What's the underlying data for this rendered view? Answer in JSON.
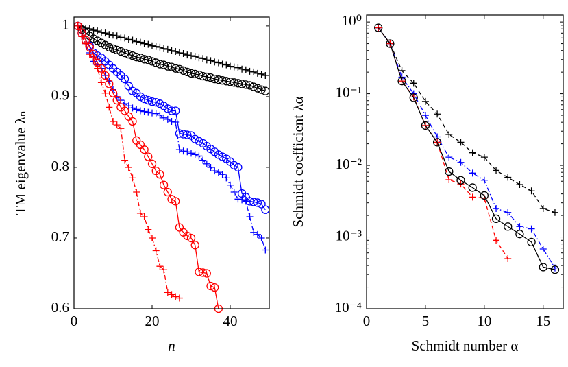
{
  "chart_data": [
    {
      "type": "line",
      "xlabel": "n",
      "ylabel": "TM eigenvalue λₙ",
      "xlim": [
        0,
        50
      ],
      "ylim": [
        0.6,
        1.0125
      ],
      "xticks": [
        0,
        20,
        40
      ],
      "yticks": [
        0.6,
        0.7,
        0.8,
        0.9,
        1
      ],
      "series": [
        {
          "color": "#000000",
          "marker": "plus",
          "dash": "solid",
          "x": [
            1,
            2,
            3,
            4,
            5,
            6,
            7,
            8,
            9,
            10,
            11,
            12,
            13,
            14,
            15,
            16,
            17,
            18,
            19,
            20,
            21,
            22,
            23,
            24,
            25,
            26,
            27,
            28,
            29,
            30,
            31,
            32,
            33,
            34,
            35,
            36,
            37,
            38,
            39,
            40,
            41,
            42,
            43,
            44,
            45,
            46,
            47,
            48,
            49
          ],
          "values": [
            1.0,
            0.999,
            0.997,
            0.996,
            0.994,
            0.993,
            0.991,
            0.99,
            0.988,
            0.987,
            0.986,
            0.984,
            0.983,
            0.981,
            0.98,
            0.978,
            0.977,
            0.975,
            0.974,
            0.972,
            0.971,
            0.97,
            0.968,
            0.967,
            0.965,
            0.964,
            0.962,
            0.961,
            0.959,
            0.958,
            0.957,
            0.955,
            0.954,
            0.952,
            0.951,
            0.949,
            0.948,
            0.946,
            0.945,
            0.943,
            0.942,
            0.941,
            0.939,
            0.938,
            0.936,
            0.935,
            0.933,
            0.932,
            0.93
          ]
        },
        {
          "color": "#000000",
          "marker": "circle",
          "dash": "solid",
          "x": [
            1,
            2,
            3,
            4,
            5,
            6,
            7,
            8,
            9,
            10,
            11,
            12,
            13,
            14,
            15,
            16,
            17,
            18,
            19,
            20,
            21,
            22,
            23,
            24,
            25,
            26,
            27,
            28,
            29,
            30,
            31,
            32,
            33,
            34,
            35,
            36,
            37,
            38,
            39,
            40,
            41,
            42,
            43,
            44,
            45,
            46,
            47,
            48,
            49
          ],
          "values": [
            1.0,
            0.995,
            0.99,
            0.986,
            0.982,
            0.979,
            0.976,
            0.973,
            0.97,
            0.968,
            0.966,
            0.964,
            0.962,
            0.96,
            0.958,
            0.956,
            0.955,
            0.953,
            0.952,
            0.95,
            0.948,
            0.946,
            0.945,
            0.943,
            0.942,
            0.94,
            0.939,
            0.937,
            0.935,
            0.933,
            0.932,
            0.931,
            0.929,
            0.928,
            0.927,
            0.925,
            0.924,
            0.923,
            0.922,
            0.921,
            0.92,
            0.919,
            0.918,
            0.917,
            0.916,
            0.914,
            0.912,
            0.91,
            0.908
          ]
        },
        {
          "color": "#0000ff",
          "marker": "circle",
          "dash": "solid",
          "x": [
            1,
            2,
            3,
            4,
            5,
            6,
            7,
            8,
            9,
            10,
            11,
            12,
            13,
            14,
            15,
            16,
            17,
            18,
            19,
            20,
            21,
            22,
            23,
            24,
            25,
            26,
            27,
            28,
            29,
            30,
            31,
            32,
            33,
            34,
            35,
            36,
            37,
            38,
            39,
            40,
            41,
            42,
            43,
            44,
            45,
            46,
            47,
            48,
            49
          ],
          "values": [
            1.0,
            0.99,
            0.98,
            0.972,
            0.962,
            0.958,
            0.955,
            0.95,
            0.945,
            0.94,
            0.935,
            0.93,
            0.925,
            0.915,
            0.908,
            0.905,
            0.9,
            0.897,
            0.895,
            0.893,
            0.892,
            0.89,
            0.887,
            0.883,
            0.88,
            0.88,
            0.848,
            0.847,
            0.846,
            0.845,
            0.84,
            0.837,
            0.834,
            0.83,
            0.826,
            0.822,
            0.818,
            0.815,
            0.812,
            0.808,
            0.803,
            0.8,
            0.763,
            0.758,
            0.752,
            0.751,
            0.75,
            0.748,
            0.74
          ]
        },
        {
          "color": "#0000ff",
          "marker": "plus",
          "dash": "dashdot",
          "x": [
            1,
            2,
            3,
            4,
            5,
            6,
            7,
            8,
            9,
            10,
            11,
            12,
            13,
            14,
            15,
            16,
            17,
            18,
            19,
            20,
            21,
            22,
            23,
            24,
            25,
            26,
            27,
            28,
            29,
            30,
            31,
            32,
            33,
            34,
            35,
            36,
            37,
            38,
            39,
            40,
            41,
            42,
            43,
            44,
            45,
            46,
            47,
            48,
            49
          ],
          "values": [
            1.0,
            0.985,
            0.975,
            0.962,
            0.95,
            0.945,
            0.94,
            0.93,
            0.922,
            0.91,
            0.9,
            0.895,
            0.89,
            0.887,
            0.884,
            0.882,
            0.88,
            0.879,
            0.878,
            0.877,
            0.876,
            0.874,
            0.87,
            0.868,
            0.865,
            0.864,
            0.825,
            0.823,
            0.822,
            0.82,
            0.818,
            0.816,
            0.81,
            0.805,
            0.8,
            0.795,
            0.793,
            0.79,
            0.785,
            0.775,
            0.765,
            0.755,
            0.754,
            0.752,
            0.73,
            0.708,
            0.705,
            0.7,
            0.683
          ]
        },
        {
          "color": "#ff0000",
          "marker": "circle",
          "dash": "solid",
          "x": [
            1,
            2,
            3,
            4,
            5,
            6,
            7,
            8,
            9,
            10,
            11,
            12,
            13,
            14,
            15,
            16,
            17,
            18,
            19,
            20,
            21,
            22,
            23,
            24,
            25,
            26,
            27,
            28,
            29,
            30,
            31,
            32,
            33,
            34,
            35,
            36,
            37
          ],
          "values": [
            1.0,
            0.99,
            0.98,
            0.97,
            0.96,
            0.948,
            0.94,
            0.93,
            0.918,
            0.905,
            0.895,
            0.885,
            0.88,
            0.872,
            0.865,
            0.838,
            0.832,
            0.825,
            0.815,
            0.805,
            0.795,
            0.79,
            0.775,
            0.765,
            0.755,
            0.752,
            0.715,
            0.708,
            0.703,
            0.7,
            0.69,
            0.652,
            0.651,
            0.65,
            0.632,
            0.63,
            0.6
          ]
        },
        {
          "color": "#ff0000",
          "marker": "plus",
          "dash": "dashdot",
          "x": [
            1,
            2,
            3,
            4,
            5,
            6,
            7,
            8,
            9,
            10,
            11,
            12,
            13,
            14,
            15,
            16,
            17,
            18,
            19,
            20,
            21,
            22,
            23,
            24,
            25,
            26,
            27
          ],
          "values": [
            1.0,
            0.985,
            0.975,
            0.96,
            0.955,
            0.94,
            0.92,
            0.905,
            0.885,
            0.865,
            0.86,
            0.855,
            0.81,
            0.8,
            0.785,
            0.765,
            0.735,
            0.73,
            0.712,
            0.7,
            0.682,
            0.66,
            0.655,
            0.623,
            0.62,
            0.617,
            0.615
          ]
        }
      ]
    },
    {
      "type": "line",
      "xlabel": "Schmidt number α",
      "ylabel": "Schmidt coefficient λα",
      "ylog": true,
      "xlim": [
        0,
        16.7
      ],
      "ylim": [
        0.0001,
        1.25
      ],
      "xticks": [
        0,
        5,
        10,
        15
      ],
      "yticks": [
        {
          "value": 0.0001,
          "label": "10⁻⁴"
        },
        {
          "value": 0.001,
          "label": "10⁻³"
        },
        {
          "value": 0.01,
          "label": "10⁻²"
        },
        {
          "value": 0.1,
          "label": "10⁻¹"
        },
        {
          "value": 1,
          "label": "10⁰"
        }
      ],
      "series": [
        {
          "color": "#000000",
          "marker": "plus",
          "dash": "dashed",
          "x": [
            1,
            2,
            3,
            4,
            5,
            6,
            7,
            8,
            9,
            10,
            11,
            12,
            13,
            14,
            15,
            16
          ],
          "values": [
            0.83,
            0.5,
            0.21,
            0.14,
            0.078,
            0.052,
            0.027,
            0.021,
            0.015,
            0.013,
            0.0085,
            0.0068,
            0.0054,
            0.0044,
            0.0025,
            0.0022
          ]
        },
        {
          "color": "#0000ff",
          "marker": "plus",
          "dash": "dashdot",
          "x": [
            1,
            2,
            3,
            4,
            5,
            6,
            7,
            8,
            9,
            10,
            11,
            12,
            13,
            14,
            15,
            16
          ],
          "values": [
            0.83,
            0.5,
            0.17,
            0.1,
            0.05,
            0.025,
            0.013,
            0.011,
            0.0078,
            0.0062,
            0.0025,
            0.0022,
            0.0014,
            0.0013,
            0.00068,
            0.00037
          ]
        },
        {
          "color": "#ff0000",
          "marker": "plus",
          "dash": "dashed",
          "x": [
            1,
            2,
            3,
            4,
            5,
            6,
            7,
            8,
            9,
            10,
            11,
            12
          ],
          "values": [
            0.83,
            0.5,
            0.15,
            0.09,
            0.036,
            0.021,
            0.0063,
            0.0055,
            0.0036,
            0.0035,
            0.0009,
            0.0005
          ]
        },
        {
          "color": "#000000",
          "marker": "circle",
          "dash": "solid",
          "x": [
            1,
            2,
            3,
            4,
            5,
            6,
            7,
            8,
            9,
            10,
            11,
            12,
            13,
            14,
            15,
            16
          ],
          "values": [
            0.83,
            0.5,
            0.15,
            0.088,
            0.036,
            0.021,
            0.0082,
            0.0062,
            0.0049,
            0.0038,
            0.0018,
            0.0014,
            0.0011,
            0.00085,
            0.00038,
            0.00035
          ]
        }
      ]
    }
  ]
}
